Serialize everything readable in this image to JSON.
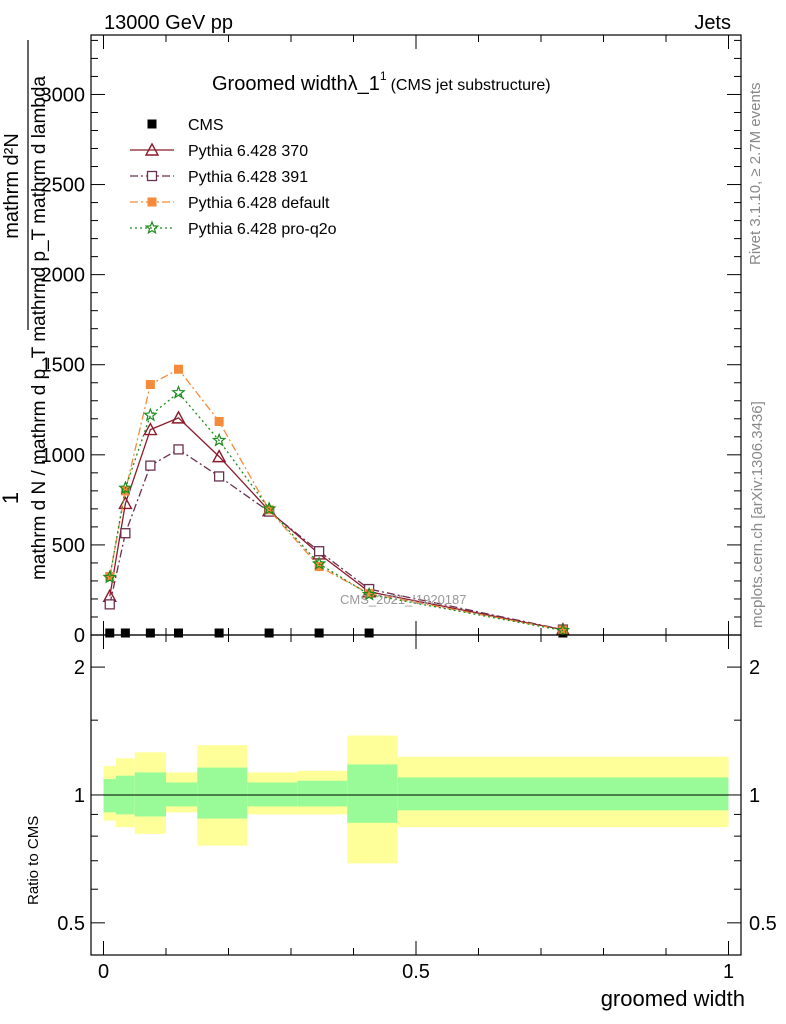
{
  "header": {
    "left": "13000 GeV pp",
    "right": "Jets"
  },
  "side": {
    "rivet": "Rivet 3.1.10, ≥ 2.7M events",
    "mcplots": "mcplots.cern.ch [arXiv:1306.3436]"
  },
  "title": {
    "main": "Groomed widthλ_1",
    "sup": "1",
    "sub": "(CMS jet substructure)"
  },
  "watermark": "CMS_2021_I1920187",
  "ylabel_main": {
    "one": "1",
    "num": "mathrm d²N",
    "den": "mathrm d N / mathrm d p_T mathrmd p_T mathrm d lambda"
  },
  "ylabel_ratio": "Ratio to CMS",
  "xlabel": "groomed width",
  "chart_data": [
    {
      "type": "line",
      "panel": "main",
      "title": "Groomed widthλ_1 (CMS jet substructure)",
      "xlabel": "groomed width",
      "ylabel": "1 / mathrm d N / mathrm d p_T mathrmd p_T mathrm d lambda · mathrm d²N",
      "xlim": [
        -0.02,
        1.02
      ],
      "ylim": [
        0,
        3330
      ],
      "x_ticks": [
        "0",
        "0.5",
        "1"
      ],
      "y_ticks": [
        "0",
        "500",
        "1000",
        "1500",
        "2000",
        "2500",
        "3000"
      ],
      "x_tick_values": [
        0,
        0.5,
        1
      ],
      "y_tick_values": [
        0,
        500,
        1000,
        1500,
        2000,
        2500,
        3000
      ],
      "legend_position": "top-left",
      "x": [
        0.01,
        0.035,
        0.075,
        0.12,
        0.185,
        0.265,
        0.345,
        0.425,
        0.735
      ],
      "series": [
        {
          "name": "CMS",
          "color": "#000000",
          "marker": "square-filled",
          "line": "none",
          "values": [
            0,
            0,
            0,
            0,
            0,
            0,
            0,
            0,
            0
          ]
        },
        {
          "name": "Pythia 6.428 370",
          "color": "#8b1a2a",
          "marker": "triangle-open",
          "line": "solid",
          "values": [
            215,
            730,
            1140,
            1205,
            990,
            690,
            450,
            240,
            30
          ]
        },
        {
          "name": "Pythia 6.428 391",
          "color": "#6b3050",
          "marker": "square-open",
          "line": "dashdot",
          "values": [
            170,
            565,
            940,
            1030,
            880,
            685,
            465,
            255,
            30
          ]
        },
        {
          "name": "Pythia 6.428 default",
          "color": "#f58a3a",
          "marker": "square-filled",
          "line": "dashdot",
          "values": [
            325,
            800,
            1390,
            1475,
            1185,
            695,
            380,
            230,
            28
          ]
        },
        {
          "name": "Pythia 6.428 pro-q2o",
          "color": "#1a8a1a",
          "marker": "star",
          "line": "dotted",
          "values": [
            320,
            815,
            1220,
            1345,
            1080,
            700,
            395,
            225,
            25
          ]
        }
      ]
    },
    {
      "type": "area",
      "panel": "ratio",
      "ylabel": "Ratio to CMS",
      "xlabel": "groomed width",
      "xlim": [
        -0.02,
        1.02
      ],
      "ylim": [
        0.42,
        2.38
      ],
      "log_y": true,
      "y_ticks": [
        "0.5",
        "1",
        "2"
      ],
      "y_tick_values": [
        0.5,
        1,
        2
      ],
      "reference_line": 1,
      "bands": [
        {
          "x0": 0.0,
          "x1": 0.02,
          "inner": [
            0.91,
            1.09
          ],
          "outer": [
            0.87,
            1.17
          ]
        },
        {
          "x0": 0.02,
          "x1": 0.05,
          "inner": [
            0.9,
            1.11
          ],
          "outer": [
            0.84,
            1.22
          ]
        },
        {
          "x0": 0.05,
          "x1": 0.1,
          "inner": [
            0.89,
            1.13
          ],
          "outer": [
            0.81,
            1.26
          ]
        },
        {
          "x0": 0.1,
          "x1": 0.15,
          "inner": [
            0.94,
            1.07
          ],
          "outer": [
            0.91,
            1.13
          ]
        },
        {
          "x0": 0.15,
          "x1": 0.23,
          "inner": [
            0.88,
            1.16
          ],
          "outer": [
            0.76,
            1.31
          ]
        },
        {
          "x0": 0.23,
          "x1": 0.31,
          "inner": [
            0.94,
            1.07
          ],
          "outer": [
            0.9,
            1.13
          ]
        },
        {
          "x0": 0.31,
          "x1": 0.39,
          "inner": [
            0.94,
            1.08
          ],
          "outer": [
            0.9,
            1.14
          ]
        },
        {
          "x0": 0.39,
          "x1": 0.47,
          "inner": [
            0.86,
            1.18
          ],
          "outer": [
            0.69,
            1.38
          ]
        },
        {
          "x0": 0.47,
          "x1": 1.0,
          "inner": [
            0.92,
            1.1
          ],
          "outer": [
            0.84,
            1.23
          ]
        }
      ],
      "band_colors": {
        "inner": "#98fb98",
        "outer": "#ffff99"
      }
    }
  ]
}
